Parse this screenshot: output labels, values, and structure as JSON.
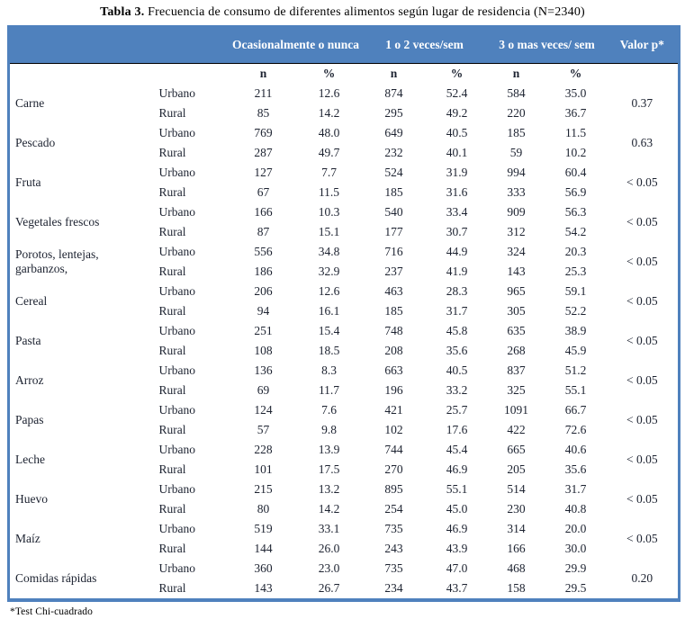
{
  "title": {
    "label": "Tabla 3.",
    "text": " Frecuencia de consumo de diferentes alimentos según lugar de residencia (N=2340)"
  },
  "table": {
    "column_groups": {
      "occasionally": "Ocasionalmente o nunca",
      "once_twice": "1 o 2 veces/sem",
      "three_plus": "3 o mas veces/ sem",
      "p_value": "Valor p*"
    },
    "subheaders": {
      "n1": "n",
      "pct1": "%",
      "n2": "n",
      "pct2": "%",
      "n3": "n",
      "pct3": "%"
    },
    "residence_labels": {
      "urban": "Urbano",
      "rural": "Rural"
    },
    "foods": [
      {
        "name": "Carne",
        "p": "0.37",
        "rows": [
          {
            "residence": "Urbano",
            "values": [
              "211",
              "12.6",
              "874",
              "52.4",
              "584",
              "35.0"
            ]
          },
          {
            "residence": "Rural",
            "values": [
              "85",
              "14.2",
              "295",
              "49.2",
              "220",
              "36.7"
            ]
          }
        ]
      },
      {
        "name": "Pescado",
        "p": "0.63",
        "rows": [
          {
            "residence": "Urbano",
            "values": [
              "769",
              "48.0",
              "649",
              "40.5",
              "185",
              "11.5"
            ]
          },
          {
            "residence": "Rural",
            "values": [
              "287",
              "49.7",
              "232",
              "40.1",
              "59",
              "10.2"
            ]
          }
        ]
      },
      {
        "name": "Fruta",
        "p": "< 0.05",
        "rows": [
          {
            "residence": "Urbano",
            "values": [
              "127",
              "7.7",
              "524",
              "31.9",
              "994",
              "60.4"
            ]
          },
          {
            "residence": "Rural",
            "values": [
              "67",
              "11.5",
              "185",
              "31.6",
              "333",
              "56.9"
            ]
          }
        ]
      },
      {
        "name": "Vegetales frescos",
        "p": "< 0.05",
        "rows": [
          {
            "residence": "Urbano",
            "values": [
              "166",
              "10.3",
              "540",
              "33.4",
              "909",
              "56.3"
            ]
          },
          {
            "residence": "Rural",
            "values": [
              "87",
              "15.1",
              "177",
              "30.7",
              "312",
              "54.2"
            ]
          }
        ]
      },
      {
        "name": "Porotos, lentejas, garbanzos,",
        "p": "< 0.05",
        "rows": [
          {
            "residence": "Urbano",
            "values": [
              "556",
              "34.8",
              "716",
              "44.9",
              "324",
              "20.3"
            ]
          },
          {
            "residence": "Rural",
            "values": [
              "186",
              "32.9",
              "237",
              "41.9",
              "143",
              "25.3"
            ]
          }
        ]
      },
      {
        "name": "Cereal",
        "p": "< 0.05",
        "rows": [
          {
            "residence": "Urbano",
            "values": [
              "206",
              "12.6",
              "463",
              "28.3",
              "965",
              "59.1"
            ]
          },
          {
            "residence": "Rural",
            "values": [
              "94",
              "16.1",
              "185",
              "31.7",
              "305",
              "52.2"
            ]
          }
        ]
      },
      {
        "name": "Pasta",
        "p": "< 0.05",
        "rows": [
          {
            "residence": "Urbano",
            "values": [
              "251",
              "15.4",
              "748",
              "45.8",
              "635",
              "38.9"
            ]
          },
          {
            "residence": "Rural",
            "values": [
              "108",
              "18.5",
              "208",
              "35.6",
              "268",
              "45.9"
            ]
          }
        ]
      },
      {
        "name": "Arroz",
        "p": "< 0.05",
        "rows": [
          {
            "residence": "Urbano",
            "values": [
              "136",
              "8.3",
              "663",
              "40.5",
              "837",
              "51.2"
            ]
          },
          {
            "residence": "Rural",
            "values": [
              "69",
              "11.7",
              "196",
              "33.2",
              "325",
              "55.1"
            ]
          }
        ]
      },
      {
        "name": "Papas",
        "p": "< 0.05",
        "rows": [
          {
            "residence": "Urbano",
            "values": [
              "124",
              "7.6",
              "421",
              "25.7",
              "1091",
              "66.7"
            ]
          },
          {
            "residence": "Rural",
            "values": [
              "57",
              "9.8",
              "102",
              "17.6",
              "422",
              "72.6"
            ]
          }
        ]
      },
      {
        "name": "Leche",
        "p": "< 0.05",
        "rows": [
          {
            "residence": "Urbano",
            "values": [
              "228",
              "13.9",
              "744",
              "45.4",
              "665",
              "40.6"
            ]
          },
          {
            "residence": "Rural",
            "values": [
              "101",
              "17.5",
              "270",
              "46.9",
              "205",
              "35.6"
            ]
          }
        ]
      },
      {
        "name": "Huevo",
        "p": "< 0.05",
        "rows": [
          {
            "residence": "Urbano",
            "values": [
              "215",
              "13.2",
              "895",
              "55.1",
              "514",
              "31.7"
            ]
          },
          {
            "residence": "Rural",
            "values": [
              "80",
              "14.2",
              "254",
              "45.0",
              "230",
              "40.8"
            ]
          }
        ]
      },
      {
        "name": "Maíz",
        "p": "< 0.05",
        "rows": [
          {
            "residence": "Urbano",
            "values": [
              "519",
              "33.1",
              "735",
              "46.9",
              "314",
              "20.0"
            ]
          },
          {
            "residence": "Rural",
            "values": [
              "144",
              "26.0",
              "243",
              "43.9",
              "166",
              "30.0"
            ]
          }
        ]
      },
      {
        "name": "Comidas rápidas",
        "p": "0.20",
        "rows": [
          {
            "residence": "Urbano",
            "values": [
              "360",
              "23.0",
              "735",
              "47.0",
              "468",
              "29.9"
            ]
          },
          {
            "residence": "Rural",
            "values": [
              "143",
              "26.7",
              "234",
              "43.7",
              "158",
              "29.5"
            ]
          }
        ]
      }
    ],
    "footnote": "*Test Chi-cuadrado"
  },
  "colors": {
    "header_bg": "#4F81BD",
    "header_text": "#ffffff",
    "border_blue": "#4F81BD",
    "body_text": "#1c2230"
  }
}
